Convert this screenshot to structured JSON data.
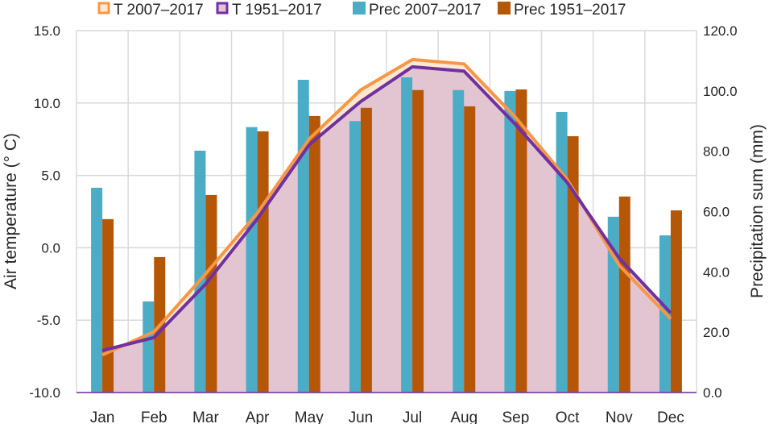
{
  "chart_data": {
    "type": "bar",
    "categories": [
      "Jan",
      "Feb",
      "Mar",
      "Apr",
      "May",
      "Jun",
      "Jul",
      "Aug",
      "Sep",
      "Oct",
      "Nov",
      "Dec"
    ],
    "ylabel": "Air temperature (° C)",
    "y2label": "Precipitation sum (mm)",
    "ylim": [
      -10,
      15
    ],
    "y2lim": [
      0,
      120
    ],
    "yticks": [
      "-10.0",
      "-5.0",
      "0.0",
      "5.0",
      "10.0",
      "15.0"
    ],
    "y2ticks": [
      "0.0",
      "20.0",
      "40.0",
      "60.0",
      "80.0",
      "100.0",
      "120.0"
    ],
    "grid": true,
    "legend_position": "top",
    "series": [
      {
        "name": "T 2007–2017",
        "type": "area-line",
        "axis": "left",
        "color": "#f79646",
        "fill": "#fde9cf",
        "values": [
          -7.4,
          -5.8,
          -1.8,
          2.4,
          7.5,
          10.9,
          13.0,
          12.7,
          9.0,
          4.7,
          -1.2,
          -4.9
        ]
      },
      {
        "name": "T 1951–2017",
        "type": "area-line",
        "axis": "left",
        "color": "#7030a0",
        "fill": "#e2c3d2",
        "values": [
          -7.1,
          -6.2,
          -2.5,
          2.0,
          7.1,
          10.1,
          12.5,
          12.2,
          8.5,
          4.5,
          -0.7,
          -4.5
        ]
      },
      {
        "name": "Prec 2007–2017",
        "type": "bar",
        "axis": "right",
        "color": "#4bacc6",
        "values": [
          67.9,
          30.2,
          80.2,
          88.0,
          103.7,
          90.0,
          104.5,
          100.3,
          100.0,
          93.0,
          58.3,
          52.1
        ]
      },
      {
        "name": "Prec 1951–2017",
        "type": "bar",
        "axis": "right",
        "color": "#b65708",
        "values": [
          57.5,
          44.9,
          65.5,
          86.6,
          91.7,
          94.4,
          100.3,
          94.9,
          100.5,
          85.0,
          65.0,
          60.4
        ]
      }
    ]
  }
}
